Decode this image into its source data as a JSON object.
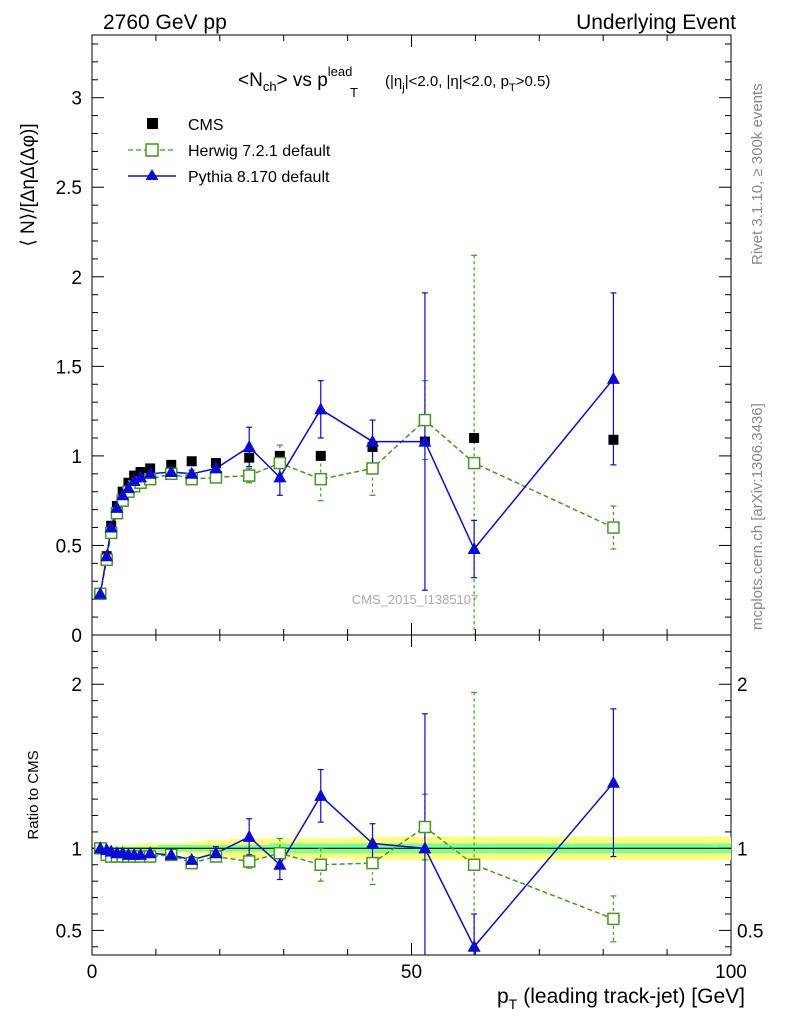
{
  "header": {
    "left": "2760 GeV pp",
    "right": "Underlying Event"
  },
  "plot_title": {
    "main": "<N",
    "main_sub": "ch",
    "mid": "> vs p",
    "p_sup": "lead",
    "p_sub": "T",
    "cuts_a": "(|η",
    "cuts_a_sub": "j",
    "cuts_b": "|<2.0, |η|<2.0, p",
    "cuts_b_sub": "T",
    "cuts_c": ">0.5)"
  },
  "side_labels": {
    "rivet": "Rivet 3.1.10, ≥ 300k events",
    "mcplots": "mcplots.cern.ch [arXiv:1306.3436]"
  },
  "watermark": "CMS_2015_I1385107",
  "colors": {
    "cms": "#000000",
    "herwig": "#44991a",
    "pythia": "#0a0adc",
    "band_yellow": "#ffff77",
    "band_green": "#77ff99"
  },
  "chart_data": [
    {
      "type": "scatter",
      "panel": "main",
      "ylabel": "⟨ N⟩/[ΔηΔ(Δφ)]",
      "xlim": [
        0,
        100
      ],
      "ylim": [
        0,
        3.35
      ],
      "y_ticks": [
        0,
        0.5,
        1,
        1.5,
        2,
        2.5,
        3
      ],
      "y_tick_labels": [
        "0",
        "0.5",
        "1",
        "1.5",
        "2",
        "2.5",
        "3"
      ],
      "legend_position": "top-left",
      "series": [
        {
          "name": "CMS",
          "marker": "square-filled",
          "x": [
            1.3,
            2.3,
            3.0,
            3.9,
            4.8,
            5.7,
            6.6,
            7.6,
            9.1,
            12.4,
            15.6,
            19.4,
            24.6,
            29.4,
            35.8,
            43.9,
            52.1,
            59.8,
            81.6
          ],
          "y": [
            0.23,
            0.44,
            0.61,
            0.72,
            0.8,
            0.85,
            0.89,
            0.91,
            0.93,
            0.95,
            0.97,
            0.96,
            0.99,
            1.0,
            1.0,
            1.05,
            1.08,
            1.1,
            1.09
          ]
        },
        {
          "name": "Herwig 7.2.1 default",
          "marker": "square-open",
          "line": "dashed",
          "x": [
            1.3,
            2.3,
            3.0,
            3.9,
            4.8,
            5.7,
            6.6,
            7.6,
            9.1,
            12.4,
            15.6,
            19.4,
            24.6,
            29.4,
            35.8,
            43.9,
            52.1,
            59.8,
            81.6
          ],
          "y": [
            0.23,
            0.42,
            0.57,
            0.68,
            0.75,
            0.8,
            0.83,
            0.85,
            0.87,
            0.9,
            0.87,
            0.88,
            0.89,
            0.96,
            0.87,
            0.93,
            1.2,
            0.96,
            0.6
          ],
          "yerr": [
            0.01,
            0.01,
            0.01,
            0.01,
            0.01,
            0.01,
            0.01,
            0.01,
            0.01,
            0.01,
            0.02,
            0.02,
            0.04,
            0.1,
            0.12,
            0.15,
            0.22,
            1.16,
            0.12
          ]
        },
        {
          "name": "Pythia 8.170 default",
          "marker": "triangle-filled",
          "line": "solid",
          "x": [
            1.3,
            2.3,
            3.0,
            3.9,
            4.8,
            5.7,
            6.6,
            7.6,
            9.1,
            12.4,
            15.6,
            19.4,
            24.6,
            29.4,
            35.8,
            43.9,
            52.1,
            59.8,
            81.6
          ],
          "y": [
            0.23,
            0.44,
            0.6,
            0.71,
            0.78,
            0.82,
            0.86,
            0.88,
            0.9,
            0.91,
            0.9,
            0.93,
            1.05,
            0.88,
            1.26,
            1.08,
            1.08,
            0.48,
            1.43
          ],
          "yerr": [
            0.01,
            0.01,
            0.01,
            0.01,
            0.01,
            0.01,
            0.01,
            0.01,
            0.01,
            0.02,
            0.02,
            0.04,
            0.11,
            0.1,
            0.16,
            0.12,
            0.83,
            0.16,
            0.48
          ]
        }
      ]
    },
    {
      "type": "scatter",
      "panel": "ratio",
      "xlabel": "p",
      "xlabel_sub": "T",
      "xlabel_rest": "(leading track-jet) [GeV]",
      "ylabel": "Ratio to CMS",
      "xlim": [
        0,
        100
      ],
      "ylim": [
        0.35,
        2.3
      ],
      "x_ticks": [
        0,
        50,
        100
      ],
      "x_tick_labels": [
        "0",
        "50",
        "100"
      ],
      "y_ticks": [
        0.5,
        1,
        2
      ],
      "y_tick_labels": [
        "0.5",
        "1",
        "2"
      ],
      "series": [
        {
          "name": "Herwig 7.2.1 default",
          "x": [
            1.3,
            2.3,
            3.0,
            3.9,
            4.8,
            5.7,
            6.6,
            7.6,
            9.1,
            12.4,
            15.6,
            19.4,
            24.6,
            29.4,
            35.8,
            43.9,
            52.1,
            59.8,
            81.6
          ],
          "y": [
            1.0,
            0.96,
            0.95,
            0.95,
            0.95,
            0.95,
            0.95,
            0.95,
            0.95,
            0.96,
            0.91,
            0.95,
            0.92,
            0.97,
            0.9,
            0.91,
            1.13,
            0.9,
            0.57
          ],
          "yerr": [
            0.01,
            0.01,
            0.01,
            0.01,
            0.01,
            0.01,
            0.01,
            0.01,
            0.01,
            0.01,
            0.02,
            0.02,
            0.04,
            0.09,
            0.1,
            0.13,
            0.2,
            1.05,
            0.14
          ]
        },
        {
          "name": "Pythia 8.170 default",
          "x": [
            1.3,
            2.3,
            3.0,
            3.9,
            4.8,
            5.7,
            6.6,
            7.6,
            9.1,
            12.4,
            15.6,
            19.4,
            24.6,
            29.4,
            35.8,
            43.9,
            52.1,
            59.8,
            81.6
          ],
          "y": [
            1.0,
            0.99,
            0.98,
            0.97,
            0.97,
            0.96,
            0.96,
            0.96,
            0.97,
            0.96,
            0.93,
            0.97,
            1.07,
            0.9,
            1.32,
            1.03,
            1.0,
            0.4,
            1.4
          ],
          "yerr": [
            0.01,
            0.01,
            0.01,
            0.01,
            0.01,
            0.01,
            0.01,
            0.01,
            0.01,
            0.02,
            0.02,
            0.04,
            0.11,
            0.09,
            0.16,
            0.12,
            0.82,
            0.2,
            0.45
          ]
        }
      ],
      "band_edges": [
        0.5,
        1.8,
        2.7,
        3.5,
        4.3,
        5.2,
        6.1,
        7.1,
        8.1,
        10.4,
        14.4,
        17.3,
        21.5,
        27.7,
        31.2,
        40.6,
        47.3,
        56.9,
        62.7,
        100.0
      ],
      "band_yellow_half": [
        0.02,
        0.02,
        0.02,
        0.02,
        0.02,
        0.02,
        0.02,
        0.03,
        0.03,
        0.03,
        0.04,
        0.05,
        0.06,
        0.06,
        0.06,
        0.07,
        0.07,
        0.07,
        0.07
      ],
      "band_green_half": [
        0.01,
        0.01,
        0.01,
        0.01,
        0.01,
        0.01,
        0.01,
        0.01,
        0.01,
        0.02,
        0.02,
        0.02,
        0.02,
        0.03,
        0.03,
        0.03,
        0.03,
        0.03,
        0.03
      ]
    }
  ]
}
